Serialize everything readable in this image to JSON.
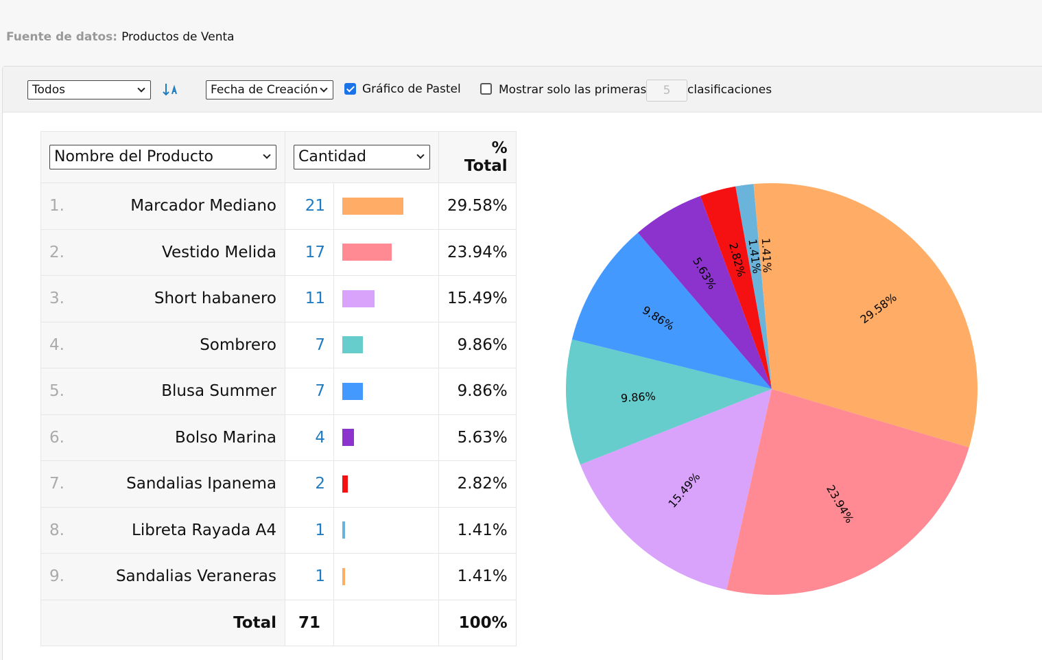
{
  "header": {
    "label": "Fuente de datos:",
    "value": "Productos de Venta"
  },
  "toolbar": {
    "filter": "Todos",
    "sort_field": "Fecha de Creación",
    "pie_toggle": {
      "label": "Gráfico de Pastel",
      "checked": true
    },
    "top_toggle": {
      "label": "Mostrar solo las primeras",
      "checked": false,
      "count": "5",
      "suffix": "clasificaciones"
    }
  },
  "table": {
    "columns": [
      "Nombre del Producto",
      "Cantidad",
      "% Total"
    ],
    "rows": [
      {
        "rank": "1.",
        "name": "Marcador Mediano",
        "quantity": 21,
        "percent": "29.58%",
        "color": "#ffad66"
      },
      {
        "rank": "2.",
        "name": "Vestido Melida",
        "quantity": 17,
        "percent": "23.94%",
        "color": "#ff8a94"
      },
      {
        "rank": "3.",
        "name": "Short habanero",
        "quantity": 11,
        "percent": "15.49%",
        "color": "#d9a3fc"
      },
      {
        "rank": "4.",
        "name": "Sombrero",
        "quantity": 7,
        "percent": "9.86%",
        "color": "#66cccc"
      },
      {
        "rank": "5.",
        "name": "Blusa Summer",
        "quantity": 7,
        "percent": "9.86%",
        "color": "#4499ff"
      },
      {
        "rank": "6.",
        "name": "Bolso Marina",
        "quantity": 4,
        "percent": "5.63%",
        "color": "#8b33cc"
      },
      {
        "rank": "7.",
        "name": "Sandalias Ipanema",
        "quantity": 2,
        "percent": "2.82%",
        "color": "#f51111"
      },
      {
        "rank": "8.",
        "name": "Libreta Rayada A4",
        "quantity": 1,
        "percent": "1.41%",
        "color": "#6ab4dc"
      },
      {
        "rank": "9.",
        "name": "Sandalias Veraneras",
        "quantity": 1,
        "percent": "1.41%",
        "color": "#ffad66"
      }
    ],
    "total": {
      "label": "Total",
      "quantity": 71,
      "percent": "100%"
    }
  }
}
